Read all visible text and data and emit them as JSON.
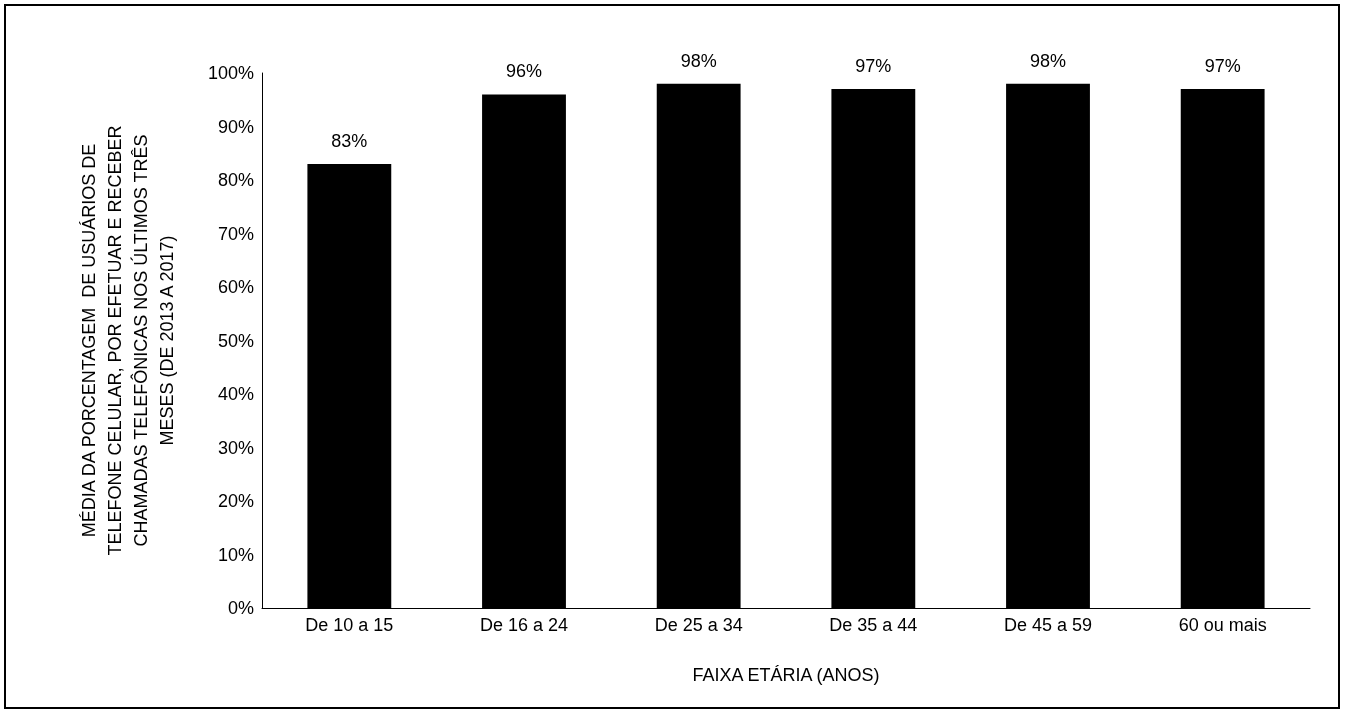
{
  "chart_data": {
    "type": "bar",
    "categories": [
      "De 10 a 15",
      "De 16 a 24",
      "De 25 a 34",
      "De 35 a 44",
      "De 45 a 59",
      "60 ou mais"
    ],
    "values": [
      83,
      96,
      98,
      97,
      98,
      97
    ],
    "value_labels": [
      "83%",
      "96%",
      "98%",
      "97%",
      "98%",
      "97%"
    ],
    "color": "#000000",
    "xlabel": "FAIXA ETÁRIA (ANOS)",
    "ylabel": "MÉDIA DA PORCENTAGEM  DE USUÁRIOS DE TELEFONE CELULAR, POR EFETUAR E RECEBER CHAMADAS TELEFÔNICAS NOS ÚLTIMOS TRÊS MESES (DE 2013 A 2017)",
    "ylim": [
      0,
      100
    ],
    "yticks": [
      {
        "value": 0,
        "label": "0%"
      },
      {
        "value": 10,
        "label": "10%"
      },
      {
        "value": 20,
        "label": "20%"
      },
      {
        "value": 30,
        "label": "30%"
      },
      {
        "value": 40,
        "label": "40%"
      },
      {
        "value": 50,
        "label": "50%"
      },
      {
        "value": 60,
        "label": "60%"
      },
      {
        "value": 70,
        "label": "70%"
      },
      {
        "value": 80,
        "label": "80%"
      },
      {
        "value": 90,
        "label": "90%"
      },
      {
        "value": 100,
        "label": "100%"
      }
    ],
    "grid": false
  }
}
